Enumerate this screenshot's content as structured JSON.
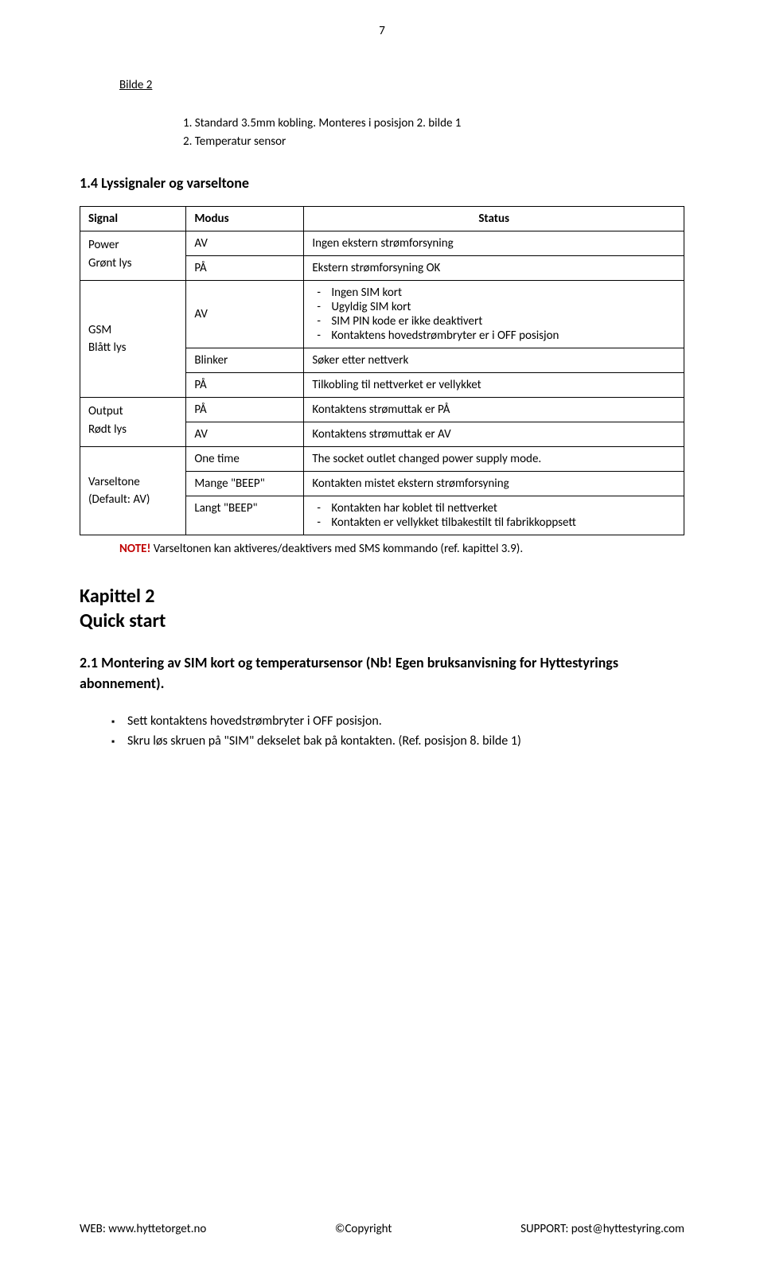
{
  "page_number": "7",
  "caption": "Bilde 2",
  "numbered": [
    "1. Standard 3.5mm kobling. Monteres i posisjon 2. bilde 1",
    "2. Temperatur sensor"
  ],
  "section_1_4": "1.4 Lyssignaler og varseltone",
  "table": {
    "headers": [
      "Signal",
      "Modus",
      "Status"
    ],
    "rows": [
      {
        "signal": "Power\nGrønt lys",
        "modus_rows": [
          {
            "modus": "AV",
            "status": "Ingen ekstern strømforsyning"
          },
          {
            "modus": "PÅ",
            "status": "Ekstern strømforsyning OK"
          }
        ]
      },
      {
        "signal": "GSM\nBlått lys",
        "modus_rows": [
          {
            "modus": "AV",
            "status_list": [
              "Ingen SIM kort",
              "Ugyldig SIM kort",
              "SIM PIN kode er ikke deaktivert",
              "Kontaktens hovedstrømbryter er i OFF posisjon"
            ]
          },
          {
            "modus": "Blinker",
            "status": "Søker etter nettverk"
          },
          {
            "modus": "PÅ",
            "status": "Tilkobling til nettverket er vellykket"
          }
        ]
      },
      {
        "signal": "Output\nRødt lys",
        "modus_rows": [
          {
            "modus": "PÅ",
            "status": "Kontaktens strømuttak er PÅ"
          },
          {
            "modus": "AV",
            "status": "Kontaktens strømuttak er AV"
          }
        ]
      },
      {
        "signal": "Varseltone\n(Default: AV)",
        "modus_rows": [
          {
            "modus": "One time",
            "status": "The socket outlet changed power supply mode."
          },
          {
            "modus": "Mange \"BEEP\"",
            "status": "Kontakten mistet ekstern strømforsyning"
          },
          {
            "modus": "Langt \"BEEP\"",
            "status_list": [
              "Kontakten har koblet til nettverket",
              "Kontakten er vellykket tilbakestilt til fabrikkoppsett"
            ]
          }
        ]
      }
    ]
  },
  "note_label": "NOTE!",
  "note_text": " Varseltonen kan aktiveres/deaktivers med SMS kommando (ref. kapittel 3.9).",
  "chapter_title": "Kapittel 2",
  "chapter_sub": "Quick start",
  "subsection_2_1": "2.1 Montering av SIM kort og temperatursensor (Nb! Egen bruksanvisning for Hyttestyrings abonnement).",
  "bullets": [
    "Sett kontaktens hovedstrømbryter i OFF posisjon.",
    "Skru løs skruen på \"SIM\" dekselet bak på kontakten. (Ref. posisjon 8. bilde 1)"
  ],
  "footer": {
    "left": "WEB: www.hyttetorget.no",
    "center": "©Copyright",
    "right": "SUPPORT: post@hyttestyring.com"
  }
}
